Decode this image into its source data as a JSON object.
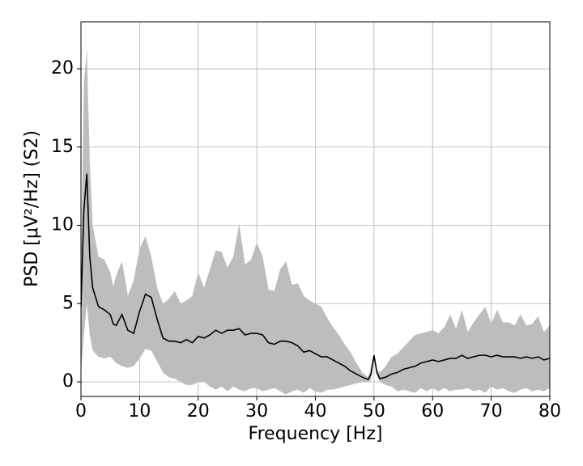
{
  "chart_data": {
    "type": "line",
    "x_label": "Frequency [Hz]",
    "y_label": "PSD [μV²/Hz] (S2)",
    "x": [
      0,
      0.5,
      1,
      1.5,
      2,
      3,
      4,
      5,
      5.5,
      6,
      7,
      8,
      9,
      10,
      11,
      12,
      13,
      14,
      15,
      16,
      17,
      18,
      19,
      20,
      21,
      22,
      23,
      24,
      25,
      26,
      27,
      28,
      29,
      30,
      31,
      32,
      33,
      34,
      35,
      36,
      37,
      38,
      39,
      40,
      41,
      42,
      43,
      44,
      45,
      46,
      47,
      48,
      49,
      49.5,
      50,
      50.5,
      51,
      52,
      53,
      54,
      55,
      56,
      57,
      58,
      59,
      60,
      61,
      62,
      63,
      64,
      65,
      66,
      67,
      68,
      69,
      70,
      71,
      72,
      73,
      74,
      75,
      76,
      77,
      78,
      79,
      80
    ],
    "values": [
      4.8,
      11,
      13.3,
      8,
      6,
      4.8,
      4.6,
      4.3,
      3.7,
      3.6,
      4.3,
      3.3,
      3.1,
      4.5,
      5.6,
      5.4,
      4,
      2.8,
      2.6,
      2.6,
      2.5,
      2.7,
      2.5,
      2.9,
      2.8,
      3.0,
      3.3,
      3.1,
      3.3,
      3.3,
      3.4,
      3.0,
      3.1,
      3.1,
      3.0,
      2.5,
      2.4,
      2.6,
      2.6,
      2.5,
      2.3,
      1.9,
      2.0,
      1.8,
      1.6,
      1.6,
      1.4,
      1.2,
      1.0,
      0.7,
      0.5,
      0.3,
      0.15,
      0.5,
      1.7,
      0.6,
      0.2,
      0.3,
      0.5,
      0.6,
      0.8,
      0.9,
      1.0,
      1.2,
      1.3,
      1.4,
      1.3,
      1.4,
      1.5,
      1.5,
      1.7,
      1.5,
      1.6,
      1.7,
      1.7,
      1.6,
      1.7,
      1.6,
      1.6,
      1.6,
      1.5,
      1.6,
      1.5,
      1.6,
      1.4,
      1.5
    ],
    "band_upper": [
      7,
      19,
      21.3,
      14,
      10,
      8,
      7.8,
      7,
      6.1,
      6.8,
      7.7,
      5.5,
      6.5,
      8.5,
      9.3,
      8,
      6,
      5,
      5.3,
      5.8,
      5,
      5.2,
      5.5,
      7,
      6,
      7.2,
      8.4,
      8.3,
      7.3,
      8,
      10.1,
      7.5,
      7.8,
      8.9,
      8,
      5.9,
      5.8,
      7.2,
      7.7,
      6.2,
      6.3,
      5.5,
      5.2,
      5,
      4.8,
      4.1,
      3.5,
      3,
      2.4,
      1.9,
      1.2,
      0.6,
      0.3,
      1,
      1.7,
      0.8,
      0.6,
      1,
      1.6,
      1.8,
      2.2,
      2.6,
      3,
      3.1,
      3.2,
      3.3,
      3.1,
      3.5,
      4.3,
      3.4,
      4.6,
      3.2,
      3.8,
      4.3,
      4.8,
      3.7,
      4.6,
      3.8,
      3.8,
      3.6,
      4.3,
      3.6,
      3.7,
      4.2,
      3.2,
      3.6
    ],
    "band_lower": [
      0.5,
      3,
      5,
      3,
      2,
      1.6,
      1.5,
      1.6,
      1.4,
      1.2,
      1,
      0.9,
      1,
      1.5,
      2.1,
      2,
      1.3,
      0.6,
      0.3,
      0.2,
      0,
      -0.2,
      -0.2,
      0,
      0,
      -0.3,
      -0.5,
      -0.3,
      -0.6,
      -0.3,
      -0.5,
      -0.6,
      -0.4,
      -0.4,
      -0.6,
      -0.5,
      -0.4,
      -0.6,
      -0.8,
      -0.6,
      -0.5,
      -0.7,
      -0.4,
      -0.6,
      -0.7,
      -0.5,
      -0.5,
      -0.4,
      -0.3,
      -0.2,
      -0.1,
      0,
      0,
      0.1,
      1.6,
      0.4,
      0,
      -0.2,
      -0.3,
      -0.6,
      -0.5,
      -0.6,
      -0.7,
      -0.4,
      -0.6,
      -0.4,
      -0.6,
      -0.4,
      -0.6,
      -0.5,
      -0.5,
      -0.4,
      -0.6,
      -0.5,
      -0.7,
      -0.3,
      -0.5,
      -0.4,
      -0.6,
      -0.7,
      -0.5,
      -0.4,
      -0.6,
      -0.5,
      -0.6,
      -0.4
    ],
    "color": "#000000",
    "band_color": "#bdbdbd",
    "xlim": [
      0,
      80
    ],
    "xticks": [
      0,
      10,
      20,
      30,
      40,
      50,
      60,
      70,
      80
    ],
    "ylim": [
      -0.93,
      23
    ],
    "yticks": [
      0,
      5,
      10,
      15,
      20
    ],
    "grid": true
  }
}
